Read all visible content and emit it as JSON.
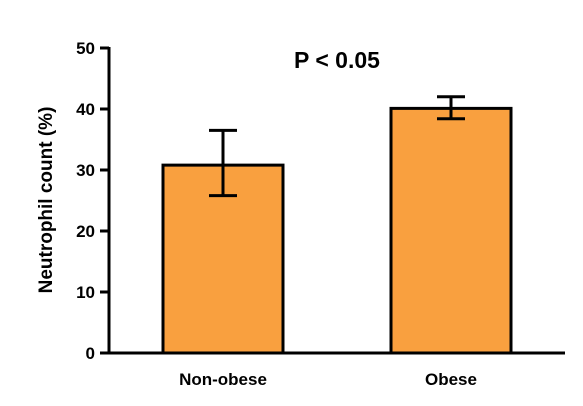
{
  "chart_data": {
    "type": "bar",
    "title": "",
    "annotation": "P < 0.05",
    "xlabel": "",
    "ylabel": "Neutrophil count (%)",
    "ylim": [
      0,
      50
    ],
    "yticks": [
      "0",
      "10",
      "20",
      "30",
      "40",
      "50"
    ],
    "categories": [
      "Non-obese",
      "Obese"
    ],
    "values": [
      30.8,
      40.1
    ],
    "error_low": [
      25.8,
      38.4
    ],
    "error_high": [
      36.5,
      42.0
    ],
    "grid": false,
    "bar_color": "#F9A03F"
  }
}
